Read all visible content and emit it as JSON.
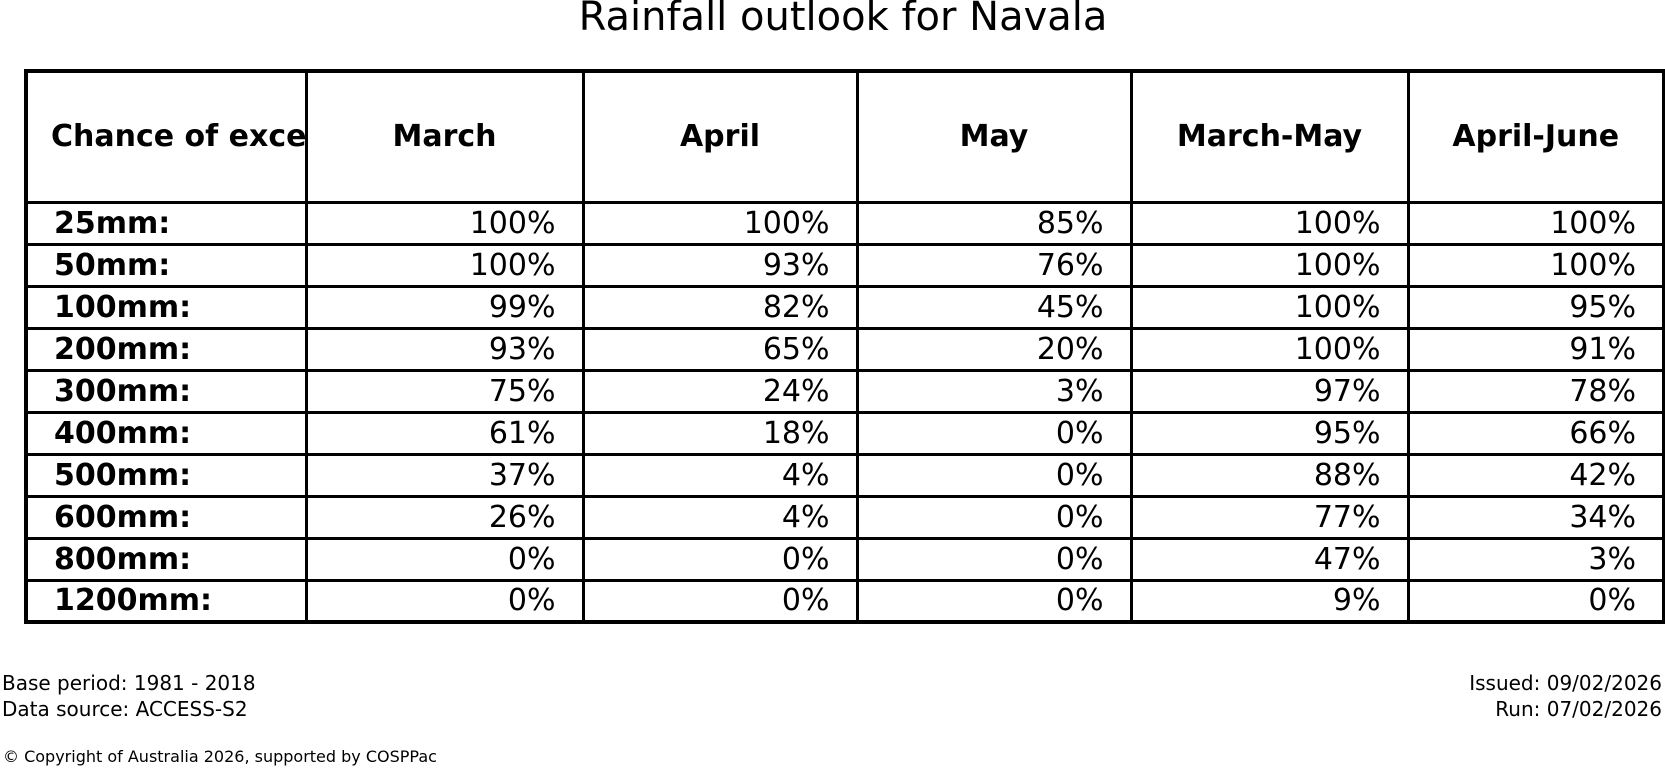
{
  "title": "Rainfall outlook for Navala",
  "table": {
    "corner_header": "Chance of\nexceeding\na threshold:",
    "columns": [
      "March",
      "April",
      "May",
      "March-May",
      "April-June"
    ],
    "rows": [
      {
        "label": "25mm:",
        "values": [
          "100%",
          "100%",
          "85%",
          "100%",
          "100%"
        ]
      },
      {
        "label": "50mm:",
        "values": [
          "100%",
          "93%",
          "76%",
          "100%",
          "100%"
        ]
      },
      {
        "label": "100mm:",
        "values": [
          "99%",
          "82%",
          "45%",
          "100%",
          "95%"
        ]
      },
      {
        "label": "200mm:",
        "values": [
          "93%",
          "65%",
          "20%",
          "100%",
          "91%"
        ]
      },
      {
        "label": "300mm:",
        "values": [
          "75%",
          "24%",
          "3%",
          "97%",
          "78%"
        ]
      },
      {
        "label": "400mm:",
        "values": [
          "61%",
          "18%",
          "0%",
          "95%",
          "66%"
        ]
      },
      {
        "label": "500mm:",
        "values": [
          "37%",
          "4%",
          "0%",
          "88%",
          "42%"
        ]
      },
      {
        "label": "600mm:",
        "values": [
          "26%",
          "4%",
          "0%",
          "77%",
          "34%"
        ]
      },
      {
        "label": "800mm:",
        "values": [
          "0%",
          "0%",
          "0%",
          "47%",
          "3%"
        ]
      },
      {
        "label": "1200mm:",
        "values": [
          "0%",
          "0%",
          "0%",
          "9%",
          "0%"
        ]
      }
    ]
  },
  "footer": {
    "base_period": "Base period: 1981 - 2018",
    "data_source": "Data source: ACCESS-S2",
    "issued": "Issued: 09/02/2026",
    "run": "Run: 07/02/2026",
    "copyright": "© Copyright of Australia 2026, supported by COSPPac"
  },
  "colors": {
    "text": "#000000",
    "border": "#000000",
    "background": "#ffffff"
  },
  "chart_data": {
    "type": "table",
    "title": "Rainfall outlook for Navala",
    "row_header": "Chance of exceeding a threshold:",
    "categories": [
      "25mm",
      "50mm",
      "100mm",
      "200mm",
      "300mm",
      "400mm",
      "500mm",
      "600mm",
      "800mm",
      "1200mm"
    ],
    "series": [
      {
        "name": "March",
        "values": [
          100,
          100,
          99,
          93,
          75,
          61,
          37,
          26,
          0,
          0
        ]
      },
      {
        "name": "April",
        "values": [
          100,
          93,
          82,
          65,
          24,
          18,
          4,
          4,
          0,
          0
        ]
      },
      {
        "name": "May",
        "values": [
          85,
          76,
          45,
          20,
          3,
          0,
          0,
          0,
          0,
          0
        ]
      },
      {
        "name": "March-May",
        "values": [
          100,
          100,
          100,
          100,
          97,
          95,
          88,
          77,
          47,
          9
        ]
      },
      {
        "name": "April-June",
        "values": [
          100,
          100,
          95,
          91,
          78,
          66,
          42,
          34,
          3,
          0
        ]
      }
    ],
    "unit": "%",
    "notes": [
      "Base period: 1981 - 2018",
      "Data source: ACCESS-S2",
      "Issued: 09/02/2026",
      "Run: 07/02/2026"
    ]
  }
}
